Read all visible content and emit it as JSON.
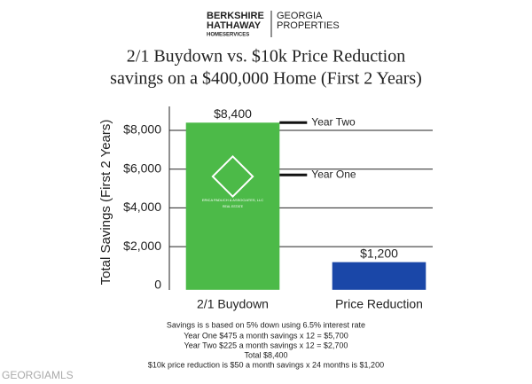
{
  "chart_data": {
    "type": "bar",
    "logo": {
      "brand": [
        "BERKSHIRE",
        "HATHAWAY",
        "HOMESERVICES"
      ],
      "region": [
        "GEORGIA",
        "PROPERTIES"
      ]
    },
    "title": [
      "2/1 Buydown vs. $10k Price Reduction",
      "savings on a $400,000 Home (First 2 Years)"
    ],
    "y_label": "Total Savings (First 2 Years)",
    "categories": [
      "2/1 Buydown",
      "Price Reduction"
    ],
    "values": [
      8400,
      1200
    ],
    "value_labels": [
      "$8,400",
      "$1,200"
    ],
    "colors": [
      "#4cba48",
      "#1a47a8"
    ],
    "ylim": [
      0,
      9000
    ],
    "yticks": [
      0,
      {
        "value": 2000,
        "label": "$2,000"
      },
      {
        "value": 4000,
        "label": "$4,000"
      },
      {
        "value": 6000,
        "label": "$6,000"
      },
      {
        "value": 8000,
        "label": "$8,000"
      }
    ],
    "grid": true,
    "annotations": [
      {
        "text": "Year Two",
        "value": 8400
      },
      {
        "text": "Year One",
        "value": 5700
      }
    ],
    "bar_logo": [
      "ERICA PADUCH & ASSOCIATES, LLC",
      "REAL ESTATE"
    ],
    "notes": [
      "Savings is s based on 5% down using 6.5% interest rate",
      "Year One $475 a month savings x 12 = $5,700",
      "Year Two $225 a month savings x 12 = $2,700",
      "Total $8,400",
      "$10k price reduction is $50 a month savings x 24 months is $1,200"
    ],
    "watermark": "GEORGIAMLS"
  }
}
